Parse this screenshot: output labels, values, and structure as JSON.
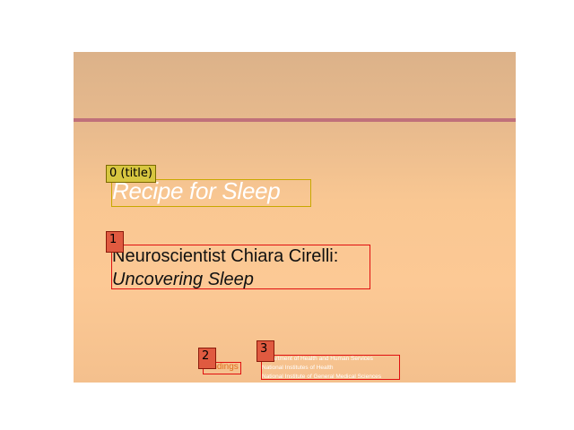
{
  "slide": {
    "title": "Recipe for Sleep",
    "subtitle_line1": "Neuroscientist Chiara Cirelli:",
    "subtitle_line2": "Uncovering Sleep",
    "logo_text": "Findings",
    "agency_lines": [
      "Department of Health and Human Services",
      "National Institutes of Health",
      "National Institute of General Medical Sciences"
    ]
  },
  "annotations": [
    {
      "label": "0 (title)"
    },
    {
      "label": "1"
    },
    {
      "label": "2"
    },
    {
      "label": "3"
    }
  ],
  "colors": {
    "rule": "#c0707a",
    "title_box": "#c8a800",
    "element_box": "#e01010"
  }
}
